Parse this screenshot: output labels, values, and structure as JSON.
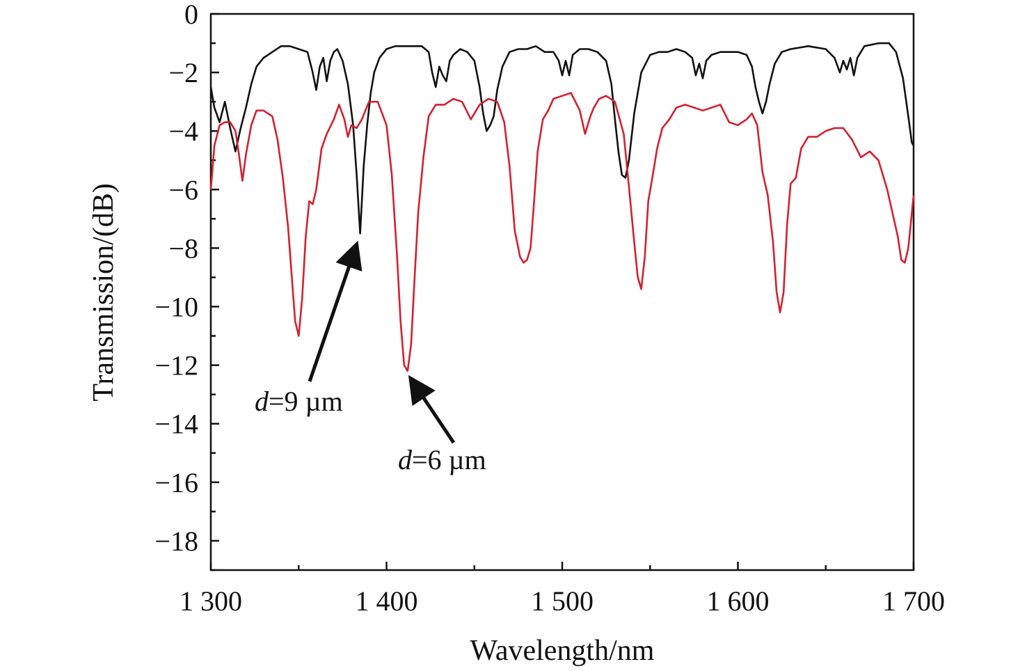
{
  "chart_data": {
    "type": "line",
    "title": "",
    "xlabel": "Wavelength/nm",
    "ylabel": "Transmission/(dB)",
    "xlim": [
      1300,
      1700
    ],
    "ylim": [
      -19,
      0
    ],
    "x_ticks": [
      1300,
      1400,
      1500,
      1600,
      1700
    ],
    "x_tick_labels": [
      "1 300",
      "1 400",
      "1 500",
      "1 600",
      "1 700"
    ],
    "y_ticks": [
      0,
      -2,
      -4,
      -6,
      -8,
      -10,
      -12,
      -14,
      -16,
      -18
    ],
    "y_tick_labels": [
      "0",
      "−2",
      "−4",
      "−6",
      "−8",
      "−10",
      "−12",
      "−14",
      "−16",
      "−18"
    ],
    "grid": false,
    "series": [
      {
        "color": "#111111",
        "x": [
          1300,
          1302,
          1305,
          1308,
          1311,
          1314,
          1317,
          1320,
          1323,
          1326,
          1330,
          1335,
          1340,
          1345,
          1350,
          1355,
          1358,
          1360,
          1362,
          1364,
          1366,
          1368,
          1370,
          1372,
          1375,
          1378,
          1381,
          1383,
          1385,
          1387,
          1389,
          1391,
          1393,
          1396,
          1400,
          1405,
          1410,
          1415,
          1420,
          1424,
          1426,
          1428,
          1430,
          1432,
          1434,
          1436,
          1438,
          1442,
          1446,
          1450,
          1453,
          1455,
          1457,
          1459,
          1461,
          1463,
          1466,
          1470,
          1475,
          1480,
          1485,
          1490,
          1495,
          1498,
          1500,
          1502,
          1504,
          1506,
          1510,
          1515,
          1520,
          1525,
          1528,
          1530,
          1532,
          1534,
          1536,
          1538,
          1541,
          1545,
          1550,
          1555,
          1560,
          1565,
          1570,
          1574,
          1576,
          1578,
          1580,
          1582,
          1585,
          1590,
          1595,
          1600,
          1605,
          1608,
          1610,
          1612,
          1614,
          1616,
          1618,
          1621,
          1625,
          1630,
          1640,
          1650,
          1655,
          1658,
          1660,
          1662,
          1664,
          1666,
          1668,
          1672,
          1680,
          1686,
          1690,
          1694,
          1697,
          1699,
          1700
        ],
        "y": [
          -2.5,
          -3.2,
          -3.7,
          -3.0,
          -3.9,
          -4.7,
          -3.9,
          -3.2,
          -2.4,
          -1.8,
          -1.5,
          -1.3,
          -1.1,
          -1.1,
          -1.2,
          -1.3,
          -2.0,
          -2.6,
          -1.8,
          -1.5,
          -2.3,
          -1.6,
          -1.3,
          -1.2,
          -1.6,
          -2.4,
          -3.8,
          -5.5,
          -7.5,
          -5.2,
          -3.8,
          -2.7,
          -2.0,
          -1.5,
          -1.2,
          -1.1,
          -1.1,
          -1.1,
          -1.1,
          -1.3,
          -2.0,
          -2.5,
          -1.8,
          -2.1,
          -2.3,
          -1.6,
          -1.4,
          -1.2,
          -1.3,
          -1.6,
          -2.5,
          -3.4,
          -4.0,
          -3.8,
          -3.5,
          -2.6,
          -1.8,
          -1.3,
          -1.2,
          -1.2,
          -1.1,
          -1.3,
          -1.3,
          -1.6,
          -2.1,
          -1.6,
          -2.1,
          -1.4,
          -1.2,
          -1.2,
          -1.3,
          -1.6,
          -2.4,
          -3.6,
          -4.7,
          -5.5,
          -5.6,
          -5.0,
          -3.4,
          -2.0,
          -1.4,
          -1.3,
          -1.3,
          -1.2,
          -1.3,
          -1.5,
          -2.1,
          -1.7,
          -2.2,
          -1.6,
          -1.4,
          -1.3,
          -1.3,
          -1.3,
          -1.4,
          -1.8,
          -2.5,
          -3.0,
          -3.4,
          -3.0,
          -2.4,
          -1.7,
          -1.3,
          -1.2,
          -1.1,
          -1.2,
          -1.5,
          -2.0,
          -1.6,
          -1.9,
          -1.5,
          -2.1,
          -1.5,
          -1.1,
          -1.0,
          -1.0,
          -1.3,
          -2.2,
          -3.5,
          -4.4,
          -4.5
        ]
      },
      {
        "color": "#d3202f",
        "x": [
          1300,
          1302,
          1305,
          1308,
          1311,
          1314,
          1316,
          1318,
          1320,
          1323,
          1326,
          1330,
          1335,
          1338,
          1341,
          1344,
          1346,
          1348,
          1350,
          1352,
          1354,
          1356,
          1358,
          1360,
          1363,
          1366,
          1370,
          1373,
          1376,
          1378,
          1380,
          1383,
          1386,
          1390,
          1395,
          1400,
          1403,
          1406,
          1408,
          1410,
          1412,
          1414,
          1416,
          1418,
          1421,
          1424,
          1428,
          1433,
          1438,
          1443,
          1448,
          1453,
          1458,
          1463,
          1467,
          1470,
          1473,
          1476,
          1478,
          1480,
          1482,
          1484,
          1486,
          1489,
          1492,
          1495,
          1500,
          1505,
          1510,
          1513,
          1516,
          1518,
          1521,
          1525,
          1530,
          1535,
          1538,
          1541,
          1543,
          1545,
          1547,
          1549,
          1551,
          1554,
          1557,
          1561,
          1565,
          1570,
          1580,
          1590,
          1595,
          1600,
          1605,
          1608,
          1611,
          1614,
          1617,
          1620,
          1622,
          1624,
          1626,
          1628,
          1630,
          1633,
          1636,
          1640,
          1645,
          1650,
          1655,
          1660,
          1665,
          1670,
          1675,
          1680,
          1685,
          1688,
          1691,
          1693,
          1695,
          1697,
          1700
        ],
        "y": [
          -6.0,
          -4.5,
          -3.8,
          -3.7,
          -3.7,
          -4.0,
          -4.8,
          -5.7,
          -4.8,
          -3.8,
          -3.3,
          -3.3,
          -3.5,
          -4.3,
          -5.6,
          -7.3,
          -8.9,
          -10.5,
          -11.0,
          -9.7,
          -7.6,
          -6.4,
          -6.5,
          -6.0,
          -4.6,
          -4.1,
          -3.6,
          -3.1,
          -3.6,
          -4.2,
          -3.8,
          -3.9,
          -3.6,
          -3.0,
          -3.0,
          -3.8,
          -5.5,
          -8.3,
          -10.5,
          -12.0,
          -12.2,
          -11.3,
          -9.0,
          -6.8,
          -4.9,
          -3.5,
          -3.1,
          -3.1,
          -2.9,
          -3.0,
          -3.6,
          -3.1,
          -2.9,
          -3.0,
          -3.7,
          -5.2,
          -7.4,
          -8.3,
          -8.5,
          -8.4,
          -8.0,
          -6.4,
          -4.7,
          -3.6,
          -3.3,
          -2.9,
          -2.8,
          -2.7,
          -3.3,
          -4.1,
          -3.5,
          -3.2,
          -2.9,
          -2.8,
          -3.0,
          -4.1,
          -5.9,
          -7.8,
          -9.0,
          -9.4,
          -8.3,
          -6.4,
          -5.7,
          -4.6,
          -3.9,
          -3.6,
          -3.2,
          -3.1,
          -3.3,
          -3.1,
          -3.7,
          -3.8,
          -3.6,
          -3.4,
          -3.8,
          -5.4,
          -6.2,
          -7.8,
          -9.5,
          -10.2,
          -9.5,
          -7.2,
          -5.8,
          -5.6,
          -4.6,
          -4.2,
          -4.2,
          -4.0,
          -3.9,
          -3.9,
          -4.3,
          -4.9,
          -4.7,
          -5.0,
          -6.0,
          -6.8,
          -7.6,
          -8.4,
          -8.5,
          -8.0,
          -6.2
        ]
      }
    ],
    "annotations": [
      {
        "label_prefix": "d",
        "label_rest": "=9 µm",
        "target_x": 1384,
        "target_y": -7.7
      },
      {
        "label_prefix": "d",
        "label_rest": "=6 µm",
        "target_x": 1412,
        "target_y": -12.3
      }
    ]
  }
}
